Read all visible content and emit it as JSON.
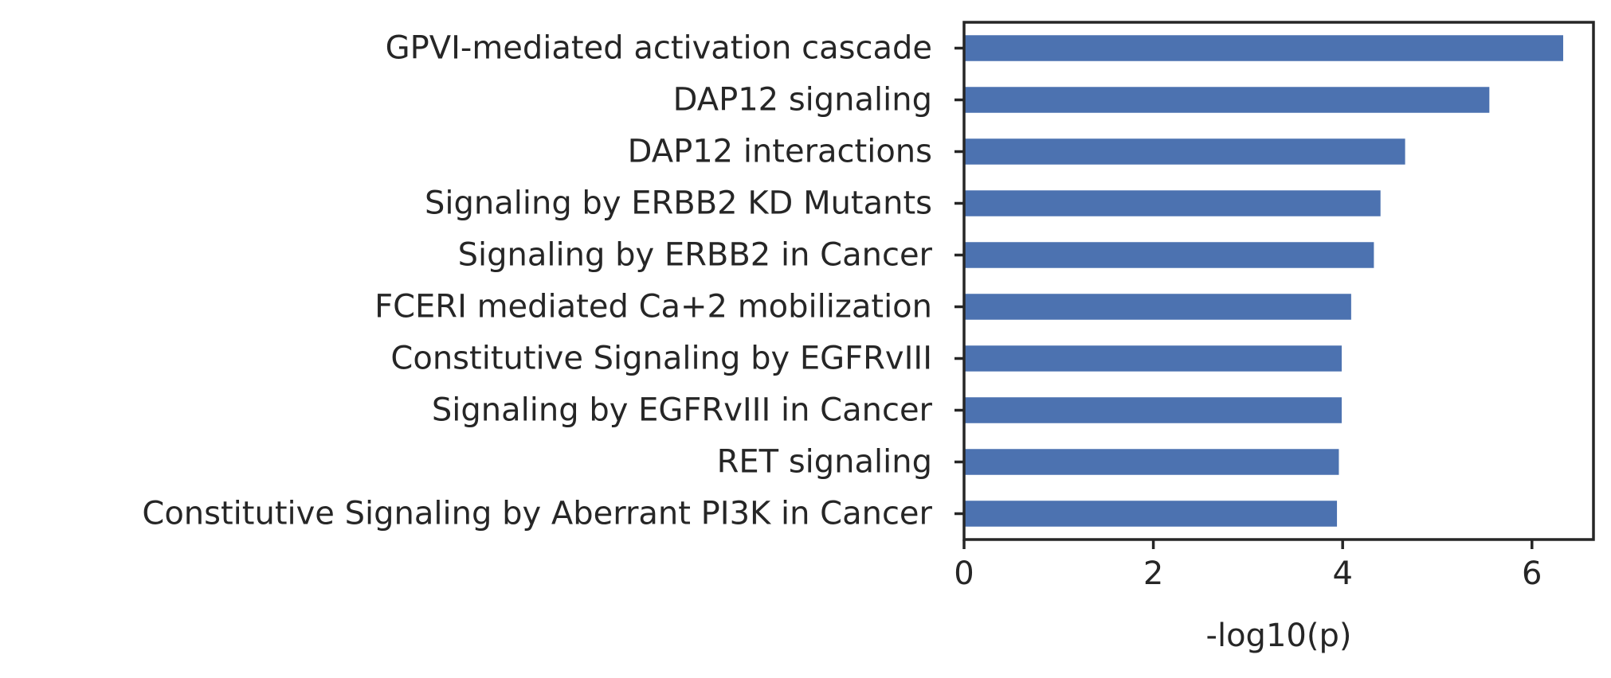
{
  "chart_data": {
    "type": "bar",
    "orientation": "horizontal",
    "title": "",
    "xlabel": "-log10(p)",
    "ylabel": "",
    "categories": [
      "GPVI-mediated activation cascade",
      "DAP12 signaling",
      "DAP12 interactions",
      "Signaling by ERBB2 KD Mutants",
      "Signaling by ERBB2 in Cancer",
      "FCERI mediated Ca+2 mobilization",
      "Constitutive Signaling by EGFRvIII",
      "Signaling by EGFRvIII in Cancer",
      "RET signaling",
      "Constitutive Signaling by Aberrant PI3K in Cancer"
    ],
    "values": [
      6.33,
      5.55,
      4.66,
      4.4,
      4.33,
      4.09,
      3.99,
      3.99,
      3.96,
      3.94
    ],
    "xlim": [
      0,
      6.65
    ],
    "xticks": [
      0,
      2,
      4,
      6
    ],
    "xtick_labels": [
      "0",
      "2",
      "4",
      "6"
    ],
    "grid": false,
    "legend": "none",
    "bar_color": "#4c72b0"
  }
}
